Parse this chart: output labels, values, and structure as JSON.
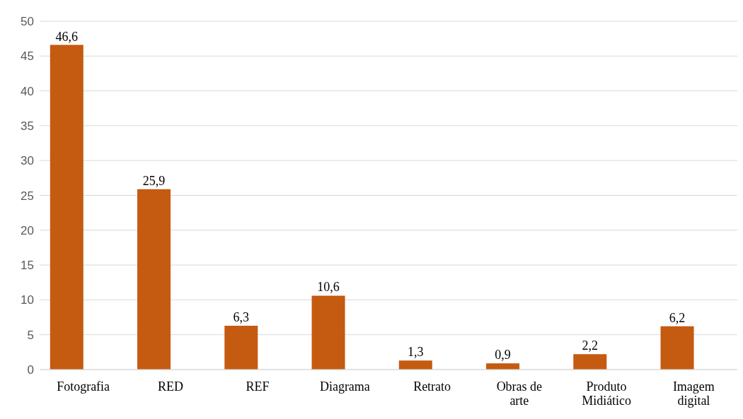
{
  "chart_data": {
    "type": "bar",
    "categories": [
      "Fotografia",
      "RED",
      "REF",
      "Diagrama",
      "Retrato",
      "Obras de arte",
      "Produto Midiático",
      "Imagem digital"
    ],
    "values": [
      46.6,
      25.9,
      6.3,
      10.6,
      1.3,
      0.9,
      2.2,
      6.2
    ],
    "value_labels": [
      "46,6",
      "25,9",
      "6,3",
      "10,6",
      "1,3",
      "0,9",
      "2,2",
      "6,2"
    ],
    "color": "#c55a11",
    "ylim": [
      0,
      50
    ],
    "yticks": [
      0,
      5,
      10,
      15,
      20,
      25,
      30,
      35,
      40,
      45,
      50
    ],
    "grid": "y",
    "legend": false
  }
}
